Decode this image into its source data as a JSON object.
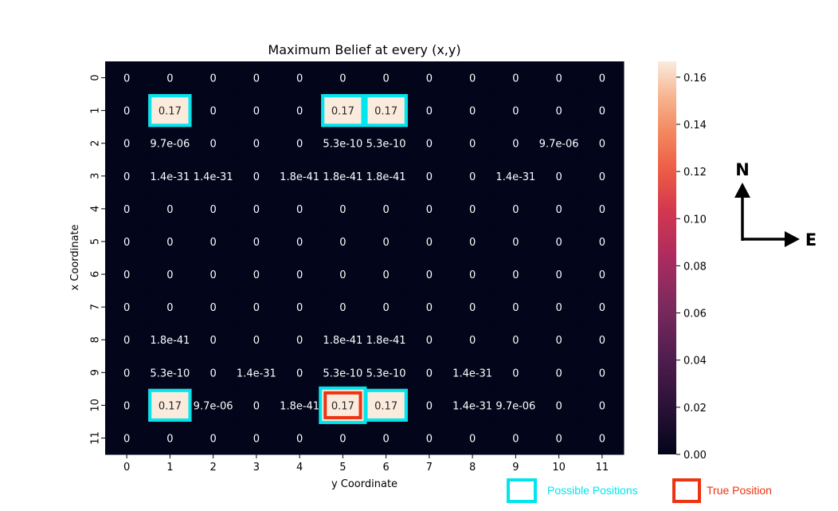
{
  "chart_data": {
    "type": "heatmap",
    "title": "Maximum Belief at every (x,y)",
    "xlabel": "y Coordinate",
    "ylabel": "x Coordinate",
    "column_labels": [
      "0",
      "1",
      "2",
      "3",
      "4",
      "5",
      "6",
      "7",
      "8",
      "9",
      "10",
      "11"
    ],
    "row_labels": [
      "0",
      "1",
      "2",
      "3",
      "4",
      "5",
      "6",
      "7",
      "8",
      "9",
      "10",
      "11"
    ],
    "cells": [
      [
        "0",
        "0",
        "0",
        "0",
        "0",
        "0",
        "0",
        "0",
        "0",
        "0",
        "0",
        "0"
      ],
      [
        "0",
        "0.17",
        "0",
        "0",
        "0",
        "0.17",
        "0.17",
        "0",
        "0",
        "0",
        "0",
        "0"
      ],
      [
        "0",
        "9.7e-06",
        "0",
        "0",
        "0",
        "5.3e-10",
        "5.3e-10",
        "0",
        "0",
        "0",
        "9.7e-06",
        "0"
      ],
      [
        "0",
        "1.4e-31",
        "1.4e-31",
        "0",
        "1.8e-41",
        "1.8e-41",
        "1.8e-41",
        "0",
        "0",
        "1.4e-31",
        "0",
        "0"
      ],
      [
        "0",
        "0",
        "0",
        "0",
        "0",
        "0",
        "0",
        "0",
        "0",
        "0",
        "0",
        "0"
      ],
      [
        "0",
        "0",
        "0",
        "0",
        "0",
        "0",
        "0",
        "0",
        "0",
        "0",
        "0",
        "0"
      ],
      [
        "0",
        "0",
        "0",
        "0",
        "0",
        "0",
        "0",
        "0",
        "0",
        "0",
        "0",
        "0"
      ],
      [
        "0",
        "0",
        "0",
        "0",
        "0",
        "0",
        "0",
        "0",
        "0",
        "0",
        "0",
        "0"
      ],
      [
        "0",
        "1.8e-41",
        "0",
        "0",
        "0",
        "1.8e-41",
        "1.8e-41",
        "0",
        "0",
        "0",
        "0",
        "0"
      ],
      [
        "0",
        "5.3e-10",
        "0",
        "1.4e-31",
        "0",
        "5.3e-10",
        "5.3e-10",
        "0",
        "1.4e-31",
        "0",
        "0",
        "0"
      ],
      [
        "0",
        "0.17",
        "9.7e-06",
        "0",
        "1.8e-41",
        "0.17",
        "0.17",
        "0",
        "1.4e-31",
        "9.7e-06",
        "0",
        "0"
      ],
      [
        "0",
        "0",
        "0",
        "0",
        "0",
        "0",
        "0",
        "0",
        "0",
        "0",
        "0",
        "0"
      ]
    ],
    "values": [
      [
        0,
        0,
        0,
        0,
        0,
        0,
        0,
        0,
        0,
        0,
        0,
        0
      ],
      [
        0,
        0.1667,
        0,
        0,
        0,
        0.1667,
        0.1667,
        0,
        0,
        0,
        0,
        0
      ],
      [
        0,
        9.7e-06,
        0,
        0,
        0,
        5.3e-10,
        5.3e-10,
        0,
        0,
        0,
        9.7e-06,
        0
      ],
      [
        0,
        1.4e-31,
        1.4e-31,
        0,
        1.8e-41,
        1.8e-41,
        1.8e-41,
        0,
        0,
        1.4e-31,
        0,
        0
      ],
      [
        0,
        0,
        0,
        0,
        0,
        0,
        0,
        0,
        0,
        0,
        0,
        0
      ],
      [
        0,
        0,
        0,
        0,
        0,
        0,
        0,
        0,
        0,
        0,
        0,
        0
      ],
      [
        0,
        0,
        0,
        0,
        0,
        0,
        0,
        0,
        0,
        0,
        0,
        0
      ],
      [
        0,
        0,
        0,
        0,
        0,
        0,
        0,
        0,
        0,
        0,
        0,
        0
      ],
      [
        0,
        1.8e-41,
        0,
        0,
        0,
        1.8e-41,
        1.8e-41,
        0,
        0,
        0,
        0,
        0
      ],
      [
        0,
        5.3e-10,
        0,
        1.4e-31,
        0,
        5.3e-10,
        5.3e-10,
        0,
        1.4e-31,
        0,
        0,
        0
      ],
      [
        0,
        0.1667,
        9.7e-06,
        0,
        1.8e-41,
        0.1667,
        0.1667,
        0,
        1.4e-31,
        9.7e-06,
        0,
        0
      ],
      [
        0,
        0,
        0,
        0,
        0,
        0,
        0,
        0,
        0,
        0,
        0,
        0
      ]
    ],
    "colorbar": {
      "min": 0,
      "max": 0.1667,
      "ticks": [
        "0.00",
        "0.02",
        "0.04",
        "0.06",
        "0.08",
        "0.10",
        "0.12",
        "0.14",
        "0.16"
      ],
      "tick_values": [
        0,
        0.02,
        0.04,
        0.06,
        0.08,
        0.1,
        0.12,
        0.14,
        0.16
      ],
      "colormap": "rocket"
    },
    "possible_positions": [
      [
        1,
        1
      ],
      [
        1,
        5
      ],
      [
        1,
        6
      ],
      [
        10,
        1
      ],
      [
        10,
        5
      ],
      [
        10,
        6
      ]
    ],
    "true_position": [
      10,
      5
    ],
    "grid": false
  },
  "compass": {
    "north": "N",
    "east": "E"
  },
  "legend": {
    "possible_label": "Possible Positions",
    "possible_color": "#00e5ee",
    "true_label": "True Position",
    "true_color": "#ee3311"
  },
  "colors": {
    "background_cell": "#03051a",
    "text_dark": "#262626",
    "text_light": "#ffffff"
  }
}
